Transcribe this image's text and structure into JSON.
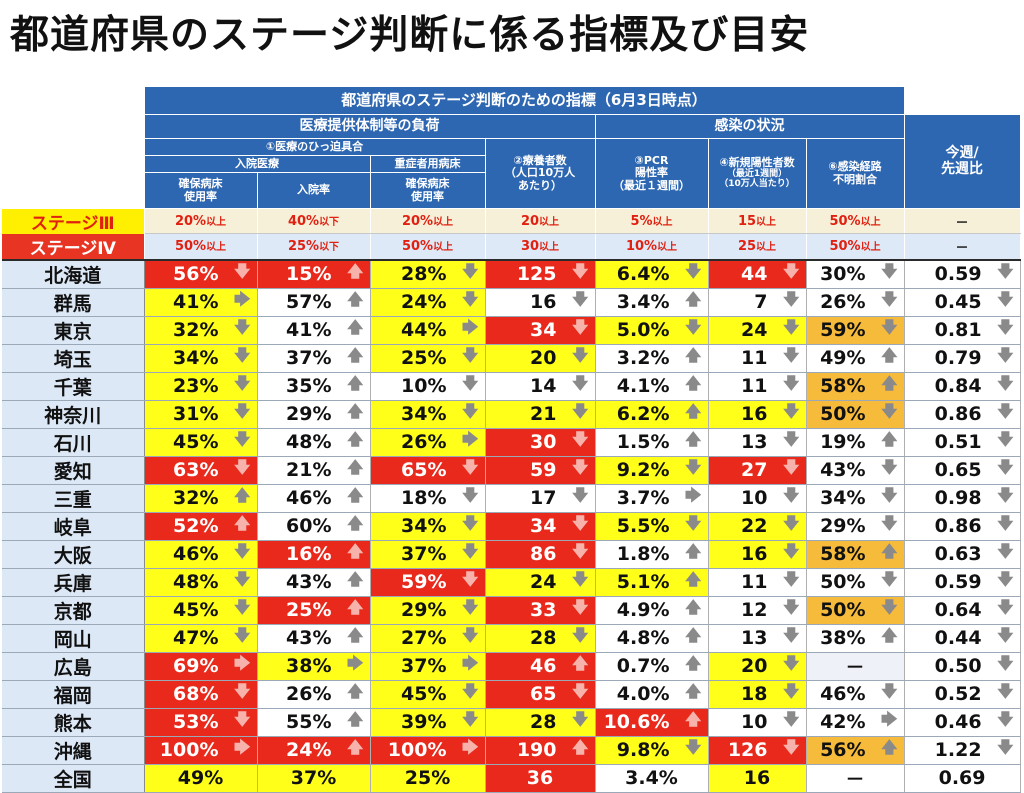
{
  "title": "都道府県のステージ判断に係る指標及び目安",
  "chart_data": {
    "type": "table",
    "header": {
      "group_title": "都道府県のステージ判断のための指標（6月3日時点）",
      "medical_load": "医療提供体制等の負荷",
      "infection_status": "感染の状況",
      "tightness": "①医療のひっ迫具合",
      "inpatient": "入院医療",
      "severe_bed": "重症者用病床",
      "bed_usage": "確保病床",
      "bed_usage2": "使用率",
      "hosp_rate": "入院率",
      "severe_usage": "確保病床",
      "severe_usage2": "使用率",
      "recuperating": "②療養者数",
      "recuperating2": "（人口10万人",
      "recuperating3": "あたり）",
      "pcr": "③PCR",
      "pcr2": "陽性率",
      "pcr3": "（最近１週間）",
      "new_cases": "④新規陽性者数",
      "new_cases2": "（最近1週間）",
      "new_cases3": "（10万人当たり）",
      "unknown_route": "⑥感染経路",
      "unknown_route2": "不明割合",
      "week_ratio": "今週/",
      "week_ratio2": "先週比"
    },
    "thresholds": [
      {
        "label": "ステージⅢ",
        "values": [
          [
            "20%",
            "以上"
          ],
          [
            "40%",
            "以下"
          ],
          [
            "20%",
            "以上"
          ],
          [
            "20",
            "以上"
          ],
          [
            "5%",
            "以上"
          ],
          [
            "15",
            "以上"
          ],
          [
            "50%",
            "以上"
          ],
          [
            "－",
            ""
          ]
        ]
      },
      {
        "label": "ステージⅣ",
        "values": [
          [
            "50%",
            "以上"
          ],
          [
            "25%",
            "以下"
          ],
          [
            "50%",
            "以上"
          ],
          [
            "30",
            "以上"
          ],
          [
            "10%",
            "以上"
          ],
          [
            "25",
            "以上"
          ],
          [
            "50%",
            "以上"
          ],
          [
            "－",
            ""
          ]
        ]
      }
    ],
    "arrows": {
      "up": "🡅",
      "down": "🡇",
      "right": "🡆"
    },
    "rows": [
      {
        "name": "北海道",
        "cells": [
          [
            "56%",
            "d",
            "r"
          ],
          [
            "15%",
            "u",
            "r"
          ],
          [
            "28%",
            "d",
            "y"
          ],
          [
            "125",
            "d",
            "r"
          ],
          [
            "6.4%",
            "d",
            "y"
          ],
          [
            "44",
            "d",
            "r"
          ],
          [
            "30%",
            "d",
            "w"
          ],
          [
            "0.59",
            "d",
            "w"
          ]
        ]
      },
      {
        "name": "群馬",
        "cells": [
          [
            "41%",
            "r",
            "y"
          ],
          [
            "57%",
            "u",
            "w"
          ],
          [
            "24%",
            "d",
            "y"
          ],
          [
            "16",
            "d",
            "w"
          ],
          [
            "3.4%",
            "u",
            "w"
          ],
          [
            "7",
            "d",
            "w"
          ],
          [
            "26%",
            "d",
            "w"
          ],
          [
            "0.45",
            "d",
            "w"
          ]
        ]
      },
      {
        "name": "東京",
        "cells": [
          [
            "32%",
            "d",
            "y"
          ],
          [
            "41%",
            "u",
            "w"
          ],
          [
            "44%",
            "r",
            "y"
          ],
          [
            "34",
            "d",
            "r"
          ],
          [
            "5.0%",
            "d",
            "y"
          ],
          [
            "24",
            "d",
            "y"
          ],
          [
            "59%",
            "d",
            "o"
          ],
          [
            "0.81",
            "d",
            "w"
          ]
        ]
      },
      {
        "name": "埼玉",
        "cells": [
          [
            "34%",
            "d",
            "y"
          ],
          [
            "37%",
            "u",
            "w"
          ],
          [
            "25%",
            "d",
            "y"
          ],
          [
            "20",
            "d",
            "y"
          ],
          [
            "3.2%",
            "u",
            "w"
          ],
          [
            "11",
            "d",
            "w"
          ],
          [
            "49%",
            "u",
            "w"
          ],
          [
            "0.79",
            "d",
            "w"
          ]
        ]
      },
      {
        "name": "千葉",
        "cells": [
          [
            "23%",
            "d",
            "y"
          ],
          [
            "35%",
            "u",
            "w"
          ],
          [
            "10%",
            "d",
            "w"
          ],
          [
            "14",
            "d",
            "w"
          ],
          [
            "4.1%",
            "u",
            "w"
          ],
          [
            "11",
            "d",
            "w"
          ],
          [
            "58%",
            "u",
            "o"
          ],
          [
            "0.84",
            "d",
            "w"
          ]
        ]
      },
      {
        "name": "神奈川",
        "cells": [
          [
            "31%",
            "d",
            "y"
          ],
          [
            "29%",
            "u",
            "w"
          ],
          [
            "34%",
            "d",
            "y"
          ],
          [
            "21",
            "d",
            "y"
          ],
          [
            "6.2%",
            "u",
            "y"
          ],
          [
            "16",
            "d",
            "y"
          ],
          [
            "50%",
            "d",
            "o"
          ],
          [
            "0.86",
            "d",
            "w"
          ]
        ]
      },
      {
        "name": "石川",
        "cells": [
          [
            "45%",
            "d",
            "y"
          ],
          [
            "48%",
            "u",
            "w"
          ],
          [
            "26%",
            "r",
            "y"
          ],
          [
            "30",
            "d",
            "r"
          ],
          [
            "1.5%",
            "u",
            "w"
          ],
          [
            "13",
            "d",
            "w"
          ],
          [
            "19%",
            "u",
            "w"
          ],
          [
            "0.51",
            "d",
            "w"
          ]
        ]
      },
      {
        "name": "愛知",
        "cells": [
          [
            "63%",
            "d",
            "r"
          ],
          [
            "21%",
            "u",
            "w"
          ],
          [
            "65%",
            "d",
            "r"
          ],
          [
            "59",
            "d",
            "r"
          ],
          [
            "9.2%",
            "d",
            "y"
          ],
          [
            "27",
            "d",
            "r"
          ],
          [
            "43%",
            "d",
            "w"
          ],
          [
            "0.65",
            "d",
            "w"
          ]
        ]
      },
      {
        "name": "三重",
        "cells": [
          [
            "32%",
            "u",
            "y"
          ],
          [
            "46%",
            "u",
            "w"
          ],
          [
            "18%",
            "d",
            "w"
          ],
          [
            "17",
            "d",
            "w"
          ],
          [
            "3.7%",
            "r",
            "w"
          ],
          [
            "10",
            "d",
            "w"
          ],
          [
            "34%",
            "d",
            "w"
          ],
          [
            "0.98",
            "d",
            "w"
          ]
        ]
      },
      {
        "name": "岐阜",
        "cells": [
          [
            "52%",
            "u",
            "r"
          ],
          [
            "60%",
            "u",
            "w"
          ],
          [
            "34%",
            "d",
            "y"
          ],
          [
            "34",
            "d",
            "r"
          ],
          [
            "5.5%",
            "d",
            "y"
          ],
          [
            "22",
            "d",
            "y"
          ],
          [
            "29%",
            "d",
            "w"
          ],
          [
            "0.86",
            "d",
            "w"
          ]
        ]
      },
      {
        "name": "大阪",
        "cells": [
          [
            "46%",
            "d",
            "y"
          ],
          [
            "16%",
            "u",
            "r"
          ],
          [
            "37%",
            "d",
            "y"
          ],
          [
            "86",
            "d",
            "r"
          ],
          [
            "1.8%",
            "u",
            "w"
          ],
          [
            "16",
            "d",
            "y"
          ],
          [
            "58%",
            "u",
            "o"
          ],
          [
            "0.63",
            "d",
            "w"
          ]
        ]
      },
      {
        "name": "兵庫",
        "cells": [
          [
            "48%",
            "d",
            "y"
          ],
          [
            "43%",
            "u",
            "w"
          ],
          [
            "59%",
            "d",
            "r"
          ],
          [
            "24",
            "d",
            "y"
          ],
          [
            "5.1%",
            "u",
            "y"
          ],
          [
            "11",
            "d",
            "w"
          ],
          [
            "50%",
            "d",
            "w"
          ],
          [
            "0.59",
            "d",
            "w"
          ]
        ]
      },
      {
        "name": "京都",
        "cells": [
          [
            "45%",
            "d",
            "y"
          ],
          [
            "25%",
            "u",
            "r"
          ],
          [
            "29%",
            "d",
            "y"
          ],
          [
            "33",
            "d",
            "r"
          ],
          [
            "4.9%",
            "u",
            "w"
          ],
          [
            "12",
            "d",
            "w"
          ],
          [
            "50%",
            "d",
            "o"
          ],
          [
            "0.64",
            "d",
            "w"
          ]
        ]
      },
      {
        "name": "岡山",
        "cells": [
          [
            "47%",
            "d",
            "y"
          ],
          [
            "43%",
            "u",
            "w"
          ],
          [
            "27%",
            "d",
            "y"
          ],
          [
            "28",
            "d",
            "y"
          ],
          [
            "4.8%",
            "u",
            "w"
          ],
          [
            "13",
            "d",
            "w"
          ],
          [
            "38%",
            "u",
            "w"
          ],
          [
            "0.44",
            "d",
            "w"
          ]
        ]
      },
      {
        "name": "広島",
        "cells": [
          [
            "69%",
            "r",
            "r"
          ],
          [
            "38%",
            "r",
            "y"
          ],
          [
            "37%",
            "r",
            "y"
          ],
          [
            "46",
            "u",
            "r"
          ],
          [
            "0.7%",
            "u",
            "w"
          ],
          [
            "20",
            "d",
            "y"
          ],
          [
            "－",
            "",
            "g"
          ],
          [
            "0.50",
            "d",
            "w"
          ]
        ]
      },
      {
        "name": "福岡",
        "cells": [
          [
            "68%",
            "d",
            "r"
          ],
          [
            "26%",
            "u",
            "w"
          ],
          [
            "45%",
            "d",
            "y"
          ],
          [
            "65",
            "d",
            "r"
          ],
          [
            "4.0%",
            "u",
            "w"
          ],
          [
            "18",
            "d",
            "y"
          ],
          [
            "46%",
            "d",
            "w"
          ],
          [
            "0.52",
            "d",
            "w"
          ]
        ]
      },
      {
        "name": "熊本",
        "cells": [
          [
            "53%",
            "d",
            "r"
          ],
          [
            "55%",
            "u",
            "w"
          ],
          [
            "39%",
            "d",
            "y"
          ],
          [
            "28",
            "d",
            "y"
          ],
          [
            "10.6%",
            "u",
            "r"
          ],
          [
            "10",
            "d",
            "w"
          ],
          [
            "42%",
            "r",
            "w"
          ],
          [
            "0.46",
            "d",
            "w"
          ]
        ]
      },
      {
        "name": "沖縄",
        "cells": [
          [
            "100%",
            "r",
            "r"
          ],
          [
            "24%",
            "u",
            "r"
          ],
          [
            "100%",
            "r",
            "r"
          ],
          [
            "190",
            "u",
            "r"
          ],
          [
            "9.8%",
            "d",
            "y"
          ],
          [
            "126",
            "d",
            "r"
          ],
          [
            "56%",
            "u",
            "o"
          ],
          [
            "1.22",
            "d",
            "w"
          ]
        ]
      },
      {
        "name": "全国",
        "cells": [
          [
            "49%",
            "",
            "y"
          ],
          [
            "37%",
            "",
            "y"
          ],
          [
            "25%",
            "",
            "y"
          ],
          [
            "36",
            "",
            "r"
          ],
          [
            "3.4%",
            "",
            "w"
          ],
          [
            "16",
            "",
            "y"
          ],
          [
            "－",
            "",
            "w"
          ],
          [
            "0.69",
            "",
            "w"
          ]
        ]
      }
    ]
  }
}
